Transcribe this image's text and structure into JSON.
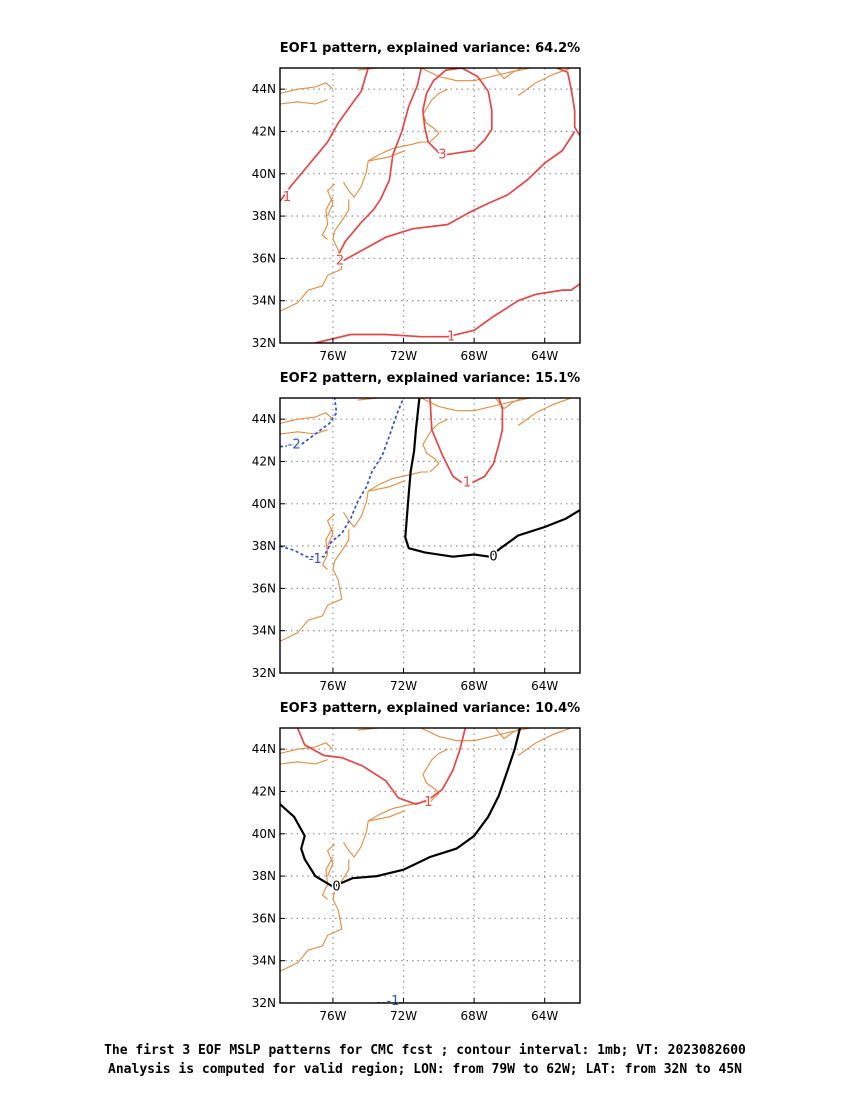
{
  "map": {
    "lon_range": [
      -79,
      -62
    ],
    "lat_range": [
      32,
      45
    ],
    "lon_ticks": [
      {
        "value": -76,
        "label": "76W"
      },
      {
        "value": -72,
        "label": "72W"
      },
      {
        "value": -68,
        "label": "68W"
      },
      {
        "value": -64,
        "label": "64W"
      }
    ],
    "lat_ticks": [
      {
        "value": 32,
        "label": "32N"
      },
      {
        "value": 34,
        "label": "34N"
      },
      {
        "value": 36,
        "label": "36N"
      },
      {
        "value": 38,
        "label": "38N"
      },
      {
        "value": 40,
        "label": "40N"
      },
      {
        "value": 42,
        "label": "42N"
      },
      {
        "value": 44,
        "label": "44N"
      }
    ],
    "grid": true,
    "coast_color": "#e8893a",
    "colors": {
      "positive": "#e84545",
      "zero": "#000000",
      "negative": "#2b4fd6",
      "grid": "#9a9a9a"
    },
    "coast": [
      [
        [
          -79,
          43.8
        ],
        [
          -78,
          44.0
        ],
        [
          -77,
          44.1
        ],
        [
          -76.4,
          44.3
        ],
        [
          -76.0,
          44.0
        ]
      ],
      [
        [
          -79,
          43.3
        ],
        [
          -78,
          43.4
        ],
        [
          -77,
          43.3
        ],
        [
          -76.3,
          43.5
        ]
      ],
      [
        [
          -74.6,
          44.9
        ],
        [
          -73.4,
          45.0
        ],
        [
          -71.0,
          45.0
        ],
        [
          -70.0,
          44.6
        ],
        [
          -69.0,
          44.4
        ],
        [
          -68.0,
          44.4
        ],
        [
          -67.0,
          44.6
        ],
        [
          -66.0,
          44.8
        ],
        [
          -64.8,
          45.0
        ],
        [
          -63.8,
          45.2
        ]
      ],
      [
        [
          -66.8,
          45.0
        ],
        [
          -66.3,
          44.5
        ],
        [
          -65.8,
          44.8
        ],
        [
          -65.3,
          45.0
        ]
      ],
      [
        [
          -65.5,
          43.7
        ],
        [
          -64.5,
          44.3
        ],
        [
          -63.5,
          44.7
        ],
        [
          -62.5,
          45.0
        ]
      ],
      [
        [
          -70.5,
          41.5
        ],
        [
          -70.0,
          41.9
        ],
        [
          -70.2,
          42.1
        ],
        [
          -70.7,
          42.4
        ],
        [
          -70.9,
          42.8
        ],
        [
          -70.4,
          43.5
        ],
        [
          -70.0,
          43.8
        ],
        [
          -69.5,
          44.0
        ]
      ],
      [
        [
          -74.0,
          40.6
        ],
        [
          -73.4,
          40.9
        ],
        [
          -72.6,
          41.2
        ],
        [
          -71.5,
          41.4
        ],
        [
          -71.0,
          41.5
        ],
        [
          -70.6,
          41.5
        ]
      ],
      [
        [
          -74.0,
          40.6
        ],
        [
          -72.8,
          40.8
        ],
        [
          -71.9,
          41.1
        ]
      ],
      [
        [
          -74.0,
          40.6
        ],
        [
          -74.1,
          40.1
        ],
        [
          -74.4,
          39.4
        ],
        [
          -74.8,
          38.9
        ],
        [
          -75.1,
          39.2
        ],
        [
          -75.4,
          39.6
        ]
      ],
      [
        [
          -75.1,
          38.8
        ],
        [
          -75.1,
          38.3
        ],
        [
          -75.4,
          37.9
        ],
        [
          -75.9,
          37.3
        ],
        [
          -76.0,
          36.9
        ],
        [
          -75.7,
          36.4
        ],
        [
          -75.5,
          35.5
        ],
        [
          -76.3,
          35.2
        ],
        [
          -76.6,
          34.7
        ],
        [
          -77.4,
          34.5
        ],
        [
          -78.0,
          33.9
        ],
        [
          -79.0,
          33.5
        ]
      ],
      [
        [
          -76.0,
          38.9
        ],
        [
          -76.4,
          38.3
        ],
        [
          -76.3,
          37.6
        ],
        [
          -76.6,
          37.1
        ],
        [
          -76.3,
          36.9
        ]
      ],
      [
        [
          -75.9,
          39.5
        ],
        [
          -76.3,
          39.2
        ],
        [
          -76.0,
          38.6
        ],
        [
          -76.3,
          38.0
        ]
      ]
    ]
  },
  "panels": [
    {
      "title": "EOF1 pattern, explained variance: 64.2%",
      "contours": [
        {
          "value": 1,
          "label": "1",
          "label_at": [
            -78.6,
            38.9
          ],
          "points": [
            [
              -79.0,
              38.7
            ],
            [
              -78.4,
              39.4
            ],
            [
              -77.3,
              40.5
            ],
            [
              -76.3,
              41.5
            ],
            [
              -75.7,
              42.4
            ],
            [
              -75.1,
              43.1
            ],
            [
              -74.4,
              43.9
            ],
            [
              -74.0,
              45.0
            ]
          ]
        },
        {
          "value": 2,
          "label": "2",
          "label_at": [
            -75.6,
            35.9
          ],
          "points": [
            [
              -75.8,
              36.0
            ],
            [
              -75.3,
              36.8
            ],
            [
              -74.4,
              37.7
            ],
            [
              -73.7,
              38.3
            ],
            [
              -73.3,
              38.8
            ],
            [
              -72.8,
              39.7
            ],
            [
              -72.6,
              40.9
            ],
            [
              -72.1,
              42.0
            ],
            [
              -71.7,
              43.2
            ],
            [
              -71.2,
              44.2
            ],
            [
              -71.0,
              45.0
            ]
          ]
        },
        {
          "value": 2,
          "label": "",
          "points": [
            [
              -75.4,
              35.9
            ],
            [
              -74.3,
              36.4
            ],
            [
              -73.0,
              37.0
            ],
            [
              -71.5,
              37.4
            ],
            [
              -69.5,
              37.6
            ],
            [
              -68.2,
              38.2
            ],
            [
              -67.2,
              38.6
            ],
            [
              -66.1,
              39.0
            ],
            [
              -65.0,
              39.7
            ],
            [
              -64.0,
              40.5
            ],
            [
              -63.0,
              41.1
            ],
            [
              -62.3,
              42.0
            ]
          ]
        },
        {
          "value": 3,
          "label": "3",
          "label_at": [
            -69.8,
            40.9
          ],
          "points": [
            [
              -69.6,
              40.9
            ],
            [
              -68.0,
              41.1
            ],
            [
              -67.4,
              41.6
            ],
            [
              -67.0,
              42.1
            ],
            [
              -67.0,
              43.0
            ],
            [
              -67.2,
              43.9
            ],
            [
              -67.8,
              44.6
            ],
            [
              -68.7,
              45.0
            ],
            [
              -69.6,
              44.9
            ],
            [
              -70.3,
              44.4
            ],
            [
              -70.7,
              43.8
            ],
            [
              -70.9,
              43.0
            ],
            [
              -70.8,
              42.2
            ],
            [
              -70.6,
              41.5
            ],
            [
              -70.0,
              41.0
            ],
            [
              -69.6,
              40.9
            ]
          ]
        },
        {
          "value": 1,
          "label": "1",
          "label_at": [
            -69.3,
            32.3
          ],
          "points": [
            [
              -77.0,
              32.0
            ],
            [
              -75.0,
              32.4
            ],
            [
              -73.0,
              32.4
            ],
            [
              -71.0,
              32.3
            ],
            [
              -69.5,
              32.3
            ],
            [
              -68.0,
              32.6
            ],
            [
              -67.0,
              33.2
            ],
            [
              -65.5,
              34.0
            ],
            [
              -64.5,
              34.3
            ],
            [
              -63.0,
              34.5
            ],
            [
              -62.5,
              34.5
            ],
            [
              -62.0,
              34.8
            ]
          ]
        },
        {
          "value": 1,
          "label": "",
          "points": [
            [
              -63.3,
              45.0
            ],
            [
              -62.7,
              44.8
            ],
            [
              -62.5,
              44.0
            ],
            [
              -62.3,
              43.0
            ],
            [
              -62.3,
              42.2
            ],
            [
              -62.0,
              41.8
            ]
          ]
        }
      ]
    },
    {
      "title": "EOF2 pattern, explained variance: 15.1%",
      "contours": [
        {
          "value": 0,
          "label": "0",
          "label_at": [
            -66.9,
            37.5
          ],
          "points": [
            [
              -71.1,
              45.0
            ],
            [
              -71.3,
              43.5
            ],
            [
              -71.4,
              42.5
            ],
            [
              -71.6,
              41.5
            ],
            [
              -71.7,
              40.5
            ],
            [
              -71.8,
              39.5
            ],
            [
              -71.9,
              38.4
            ],
            [
              -71.7,
              37.9
            ],
            [
              -70.8,
              37.7
            ],
            [
              -69.2,
              37.5
            ],
            [
              -68.0,
              37.6
            ],
            [
              -67.1,
              37.5
            ],
            [
              -66.5,
              37.9
            ],
            [
              -65.5,
              38.5
            ],
            [
              -64.0,
              38.9
            ],
            [
              -62.8,
              39.3
            ],
            [
              -62.0,
              39.7
            ]
          ]
        },
        {
          "value": 1,
          "label": "1",
          "label_at": [
            -68.4,
            41.0
          ],
          "points": [
            [
              -68.1,
              41.0
            ],
            [
              -67.4,
              41.3
            ],
            [
              -66.9,
              41.9
            ],
            [
              -66.6,
              42.8
            ],
            [
              -66.4,
              43.5
            ],
            [
              -66.4,
              44.5
            ],
            [
              -66.6,
              45.0
            ]
          ]
        },
        {
          "value": 1,
          "label": "",
          "points": [
            [
              -68.7,
              41.0
            ],
            [
              -69.2,
              41.3
            ],
            [
              -69.8,
              42.3
            ],
            [
              -70.4,
              43.5
            ],
            [
              -70.5,
              45.0
            ]
          ]
        },
        {
          "value": -1,
          "label": "-1",
          "label_at": [
            -77.0,
            37.4
          ],
          "points": [
            [
              -79.0,
              38.0
            ],
            [
              -78.2,
              37.8
            ],
            [
              -77.5,
              37.5
            ],
            [
              -76.5,
              37.5
            ],
            [
              -76.1,
              38.2
            ],
            [
              -75.5,
              38.6
            ],
            [
              -75.0,
              39.3
            ],
            [
              -74.6,
              40.1
            ],
            [
              -74.1,
              40.8
            ],
            [
              -73.8,
              41.5
            ],
            [
              -73.2,
              42.3
            ],
            [
              -72.8,
              43.2
            ],
            [
              -72.4,
              44.2
            ],
            [
              -72.0,
              45.0
            ]
          ]
        },
        {
          "value": -2,
          "label": "-2",
          "label_at": [
            -78.2,
            42.8
          ],
          "points": [
            [
              -79.0,
              42.7
            ],
            [
              -77.8,
              42.8
            ],
            [
              -77.0,
              43.3
            ],
            [
              -76.2,
              43.8
            ],
            [
              -75.8,
              44.3
            ],
            [
              -75.9,
              45.0
            ]
          ]
        }
      ]
    },
    {
      "title": "EOF3 pattern, explained variance: 10.4%",
      "contours": [
        {
          "value": 1,
          "label": "1",
          "label_at": [
            -70.6,
            41.5
          ],
          "points": [
            [
              -78.0,
              45.0
            ],
            [
              -77.6,
              44.2
            ],
            [
              -76.5,
              43.7
            ],
            [
              -75.5,
              43.6
            ],
            [
              -74.3,
              43.2
            ],
            [
              -73.0,
              42.5
            ],
            [
              -72.3,
              41.7
            ],
            [
              -71.3,
              41.4
            ],
            [
              -70.6,
              41.6
            ],
            [
              -69.8,
              42.1
            ],
            [
              -69.2,
              43.0
            ],
            [
              -68.8,
              44.0
            ],
            [
              -68.5,
              45.0
            ]
          ]
        },
        {
          "value": 0,
          "label": "0",
          "label_at": [
            -75.8,
            37.5
          ],
          "points": [
            [
              -79.0,
              41.4
            ],
            [
              -78.2,
              40.8
            ],
            [
              -77.6,
              39.9
            ],
            [
              -77.8,
              39.3
            ],
            [
              -77.6,
              38.8
            ],
            [
              -77.0,
              38.0
            ],
            [
              -76.0,
              37.5
            ],
            [
              -74.9,
              37.9
            ],
            [
              -73.5,
              38.0
            ],
            [
              -72.0,
              38.3
            ],
            [
              -70.5,
              38.9
            ],
            [
              -69.0,
              39.3
            ],
            [
              -68.0,
              39.9
            ],
            [
              -67.2,
              40.8
            ],
            [
              -66.6,
              41.8
            ],
            [
              -66.1,
              43.0
            ],
            [
              -65.7,
              44.0
            ],
            [
              -65.4,
              45.0
            ]
          ]
        },
        {
          "value": -1,
          "label": "-1",
          "label_at": [
            -72.6,
            32.1
          ],
          "points": [
            [
              -73.5,
              32.0
            ],
            [
              -72.0,
              32.0
            ]
          ]
        }
      ]
    }
  ],
  "caption": {
    "line1": "The first 3 EOF MSLP patterns for CMC fcst ; contour interval: 1mb; VT: 2023082600",
    "line2": "Analysis is computed for valid region; LON: from 79W to 62W; LAT: from 32N to 45N"
  }
}
